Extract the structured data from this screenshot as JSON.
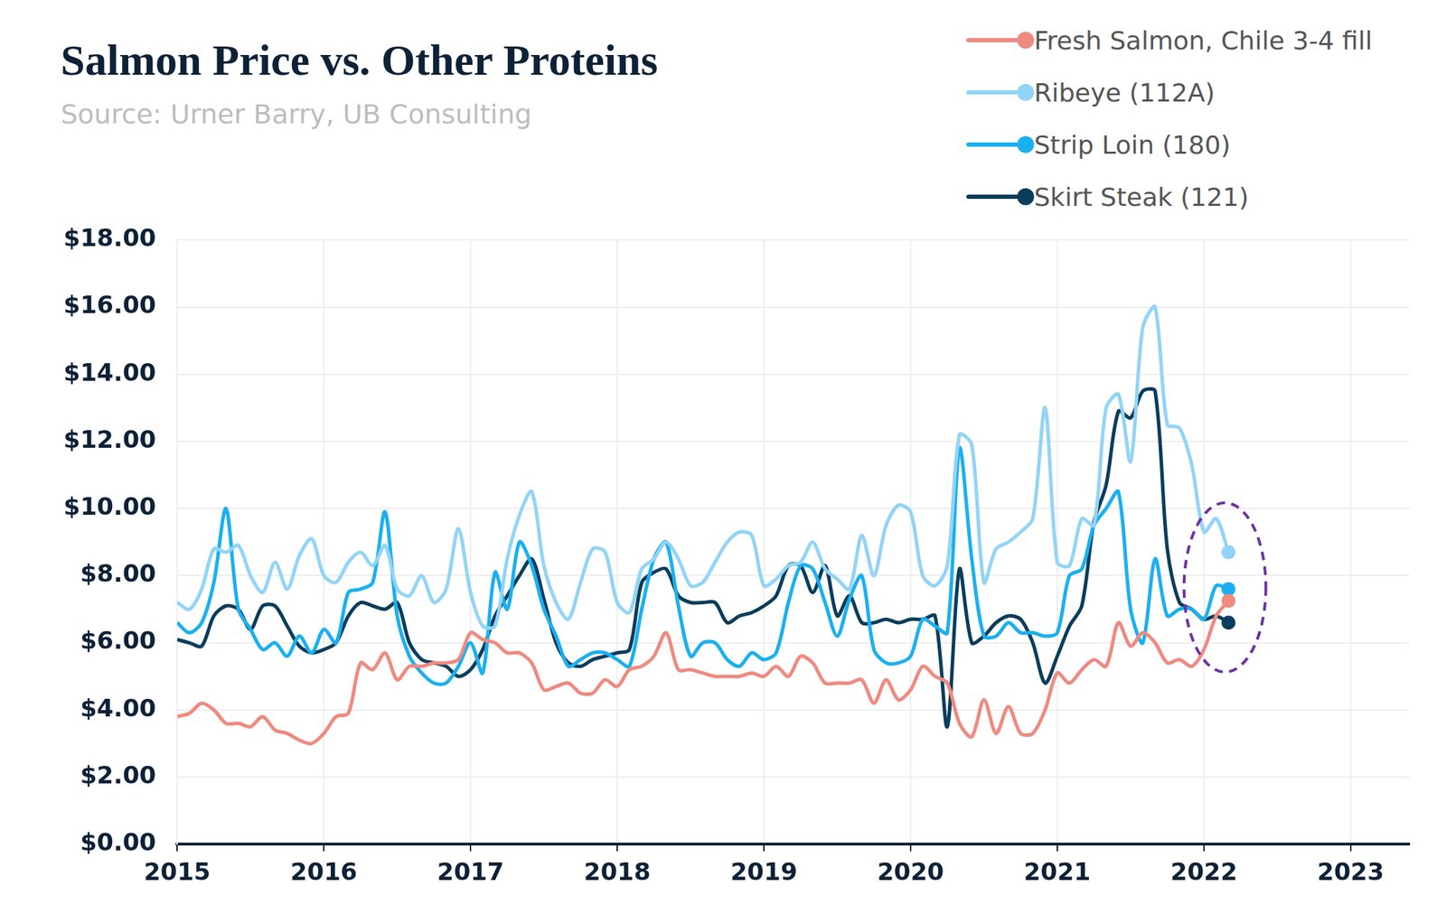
{
  "chart_data": {
    "type": "line",
    "title": "Salmon Price vs. Other Proteins",
    "subtitle": "Source: Urner Barry, UB Consulting",
    "x": [
      2015,
      2015.083,
      2015.167,
      2015.25,
      2015.333,
      2015.417,
      2015.5,
      2015.583,
      2015.667,
      2015.75,
      2015.833,
      2015.917,
      2016,
      2016.083,
      2016.167,
      2016.25,
      2016.333,
      2016.417,
      2016.5,
      2016.583,
      2016.667,
      2016.75,
      2016.833,
      2016.917,
      2017,
      2017.083,
      2017.167,
      2017.25,
      2017.333,
      2017.417,
      2017.5,
      2017.583,
      2017.667,
      2017.75,
      2017.833,
      2017.917,
      2018,
      2018.083,
      2018.167,
      2018.25,
      2018.333,
      2018.417,
      2018.5,
      2018.583,
      2018.667,
      2018.75,
      2018.833,
      2018.917,
      2019,
      2019.083,
      2019.167,
      2019.25,
      2019.333,
      2019.417,
      2019.5,
      2019.583,
      2019.667,
      2019.75,
      2019.833,
      2019.917,
      2020,
      2020.083,
      2020.167,
      2020.25,
      2020.333,
      2020.417,
      2020.5,
      2020.583,
      2020.667,
      2020.75,
      2020.833,
      2020.917,
      2021,
      2021.083,
      2021.167,
      2021.25,
      2021.333,
      2021.417,
      2021.5,
      2021.583,
      2021.667,
      2021.75,
      2021.833,
      2021.917,
      2022,
      2022.083,
      2022.167
    ],
    "series": [
      {
        "name": "Fresh Salmon, Chile 3-4 fill",
        "color": "#ef8a80",
        "values": [
          3.8,
          3.9,
          4.2,
          4.0,
          3.6,
          3.6,
          3.5,
          3.8,
          3.4,
          3.3,
          3.1,
          3.0,
          3.3,
          3.8,
          3.9,
          5.4,
          5.2,
          5.7,
          4.9,
          5.3,
          5.3,
          5.4,
          5.4,
          5.5,
          6.3,
          6.1,
          6.0,
          5.7,
          5.7,
          5.4,
          4.6,
          4.7,
          4.8,
          4.5,
          4.5,
          4.9,
          4.7,
          5.2,
          5.3,
          5.6,
          6.3,
          5.2,
          5.2,
          5.1,
          5.0,
          5.0,
          5.0,
          5.1,
          5.0,
          5.3,
          5.0,
          5.6,
          5.4,
          4.8,
          4.8,
          4.8,
          4.9,
          4.2,
          4.9,
          4.3,
          4.6,
          5.3,
          5.0,
          4.8,
          3.6,
          3.2,
          4.3,
          3.3,
          4.1,
          3.3,
          3.3,
          4.0,
          5.1,
          4.8,
          5.2,
          5.5,
          5.3,
          6.6,
          5.9,
          6.3,
          6.0,
          5.4,
          5.5,
          5.3,
          5.8,
          6.8,
          7.25
        ]
      },
      {
        "name": "Ribeye (112A)",
        "color": "#92d4f7",
        "values": [
          7.2,
          7.0,
          7.6,
          8.8,
          8.7,
          8.9,
          8.0,
          7.5,
          8.4,
          7.6,
          8.6,
          9.1,
          8.0,
          7.8,
          8.4,
          8.7,
          8.3,
          8.9,
          7.6,
          7.4,
          8.0,
          7.2,
          7.6,
          9.4,
          7.5,
          6.5,
          6.5,
          8.5,
          9.8,
          10.5,
          8.3,
          7.2,
          6.7,
          7.8,
          8.8,
          8.7,
          7.2,
          6.9,
          8.2,
          8.5,
          9.0,
          8.5,
          7.7,
          7.8,
          8.4,
          9.0,
          9.3,
          9.2,
          7.7,
          7.9,
          8.3,
          8.4,
          9.0,
          8.2,
          7.9,
          7.6,
          9.2,
          8.0,
          9.5,
          10.1,
          9.9,
          8.0,
          7.7,
          8.3,
          12.2,
          11.9,
          7.8,
          8.8,
          9.0,
          9.3,
          9.7,
          13.0,
          8.4,
          8.3,
          9.7,
          9.5,
          13.0,
          13.4,
          11.4,
          15.4,
          16.0,
          12.5,
          12.4,
          11.3,
          9.3,
          9.7,
          8.7
        ]
      },
      {
        "name": "Strip Loin (180)",
        "color": "#1ab0f0",
        "values": [
          6.6,
          6.3,
          6.6,
          7.8,
          10.0,
          7.0,
          6.4,
          5.8,
          6.0,
          5.6,
          6.2,
          5.7,
          6.4,
          6.0,
          7.5,
          7.6,
          7.8,
          9.9,
          6.8,
          5.6,
          5.1,
          4.8,
          4.8,
          5.3,
          6.0,
          5.1,
          8.1,
          7.0,
          9.0,
          8.3,
          7.0,
          6.2,
          5.3,
          5.5,
          5.7,
          5.7,
          5.5,
          5.3,
          7.0,
          8.5,
          9.0,
          7.1,
          5.6,
          6.0,
          6.0,
          5.5,
          5.3,
          5.7,
          5.5,
          5.7,
          7.2,
          8.3,
          8.2,
          7.2,
          6.2,
          7.3,
          8.0,
          5.8,
          5.4,
          5.4,
          5.6,
          6.7,
          6.5,
          6.3,
          11.8,
          8.5,
          6.2,
          6.2,
          6.6,
          6.3,
          6.3,
          6.2,
          6.3,
          8.0,
          8.2,
          9.5,
          10.0,
          10.5,
          7.0,
          6.0,
          8.5,
          6.8,
          7.0,
          7.0,
          6.7,
          7.7,
          7.6
        ]
      },
      {
        "name": "Skirt Steak (121)",
        "color": "#0a3d5c",
        "values": [
          6.1,
          6.0,
          5.9,
          6.8,
          7.1,
          7.0,
          6.4,
          7.1,
          7.1,
          6.5,
          5.9,
          5.7,
          5.8,
          6.0,
          6.8,
          7.2,
          7.1,
          7.0,
          7.2,
          6.0,
          5.5,
          5.4,
          5.3,
          5.0,
          5.2,
          5.8,
          6.8,
          7.4,
          8.0,
          8.5,
          7.3,
          6.0,
          5.4,
          5.3,
          5.5,
          5.6,
          5.7,
          5.8,
          7.8,
          8.1,
          8.2,
          7.4,
          7.2,
          7.2,
          7.2,
          6.6,
          6.8,
          6.9,
          7.1,
          7.4,
          8.3,
          8.3,
          7.5,
          8.3,
          6.8,
          7.4,
          6.6,
          6.6,
          6.7,
          6.6,
          6.7,
          6.7,
          6.8,
          3.5,
          8.2,
          6.0,
          6.2,
          6.6,
          6.8,
          6.7,
          6.0,
          4.8,
          5.6,
          6.5,
          7.1,
          9.6,
          10.7,
          12.9,
          12.7,
          13.5,
          13.5,
          8.8,
          7.2,
          7.0,
          6.7,
          6.8,
          6.6
        ]
      }
    ],
    "xlim": [
      2015,
      2023.4
    ],
    "xticks": [
      2015,
      2016,
      2017,
      2018,
      2019,
      2020,
      2021,
      2022,
      2023
    ],
    "ylim": [
      0,
      18
    ],
    "yticks": [
      {
        "value": 0,
        "label": "$0.00"
      },
      {
        "value": 2,
        "label": "$2.00"
      },
      {
        "value": 4,
        "label": "$4.00"
      },
      {
        "value": 6,
        "label": "$6.00"
      },
      {
        "value": 8,
        "label": "$8.00"
      },
      {
        "value": 10,
        "label": "$10.00"
      },
      {
        "value": 12,
        "label": "$12.00"
      },
      {
        "value": 14,
        "label": "$14.00"
      },
      {
        "value": 16,
        "label": "$16.00"
      },
      {
        "value": 18,
        "label": "$18.00"
      }
    ],
    "grid": true,
    "legend": "top-right"
  }
}
